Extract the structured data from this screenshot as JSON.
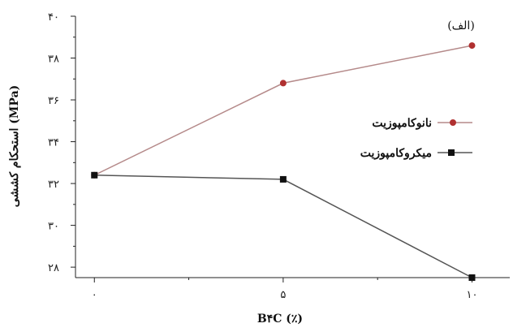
{
  "chart_data": {
    "type": "line",
    "title": "",
    "panel_label": "(الف)",
    "xlabel": "B۴C (٪)",
    "ylabel": "استحکام کششی (MPa)",
    "x": [
      0,
      5,
      10
    ],
    "x_tick_labels": [
      "۰",
      "۵",
      "۱۰"
    ],
    "xlim": [
      -0.5,
      11
    ],
    "ylim": [
      27.5,
      40
    ],
    "y_ticks": [
      28,
      30,
      32,
      34,
      36,
      38,
      40
    ],
    "y_tick_labels": [
      "۲۸",
      "۳۰",
      "۳۲",
      "۳۴",
      "۳۶",
      "۳۸",
      "۴۰"
    ],
    "grid": false,
    "legend_position": "right",
    "series": [
      {
        "name": "نانوکامپوزیت",
        "values": [
          32.4,
          36.8,
          38.6
        ],
        "color": "#b03030",
        "line_color": "#b58a8a",
        "marker": "circle"
      },
      {
        "name": "میکروکامپوزیت",
        "values": [
          32.4,
          32.2,
          27.5
        ],
        "color": "#111111",
        "line_color": "#555555",
        "marker": "square"
      }
    ]
  }
}
